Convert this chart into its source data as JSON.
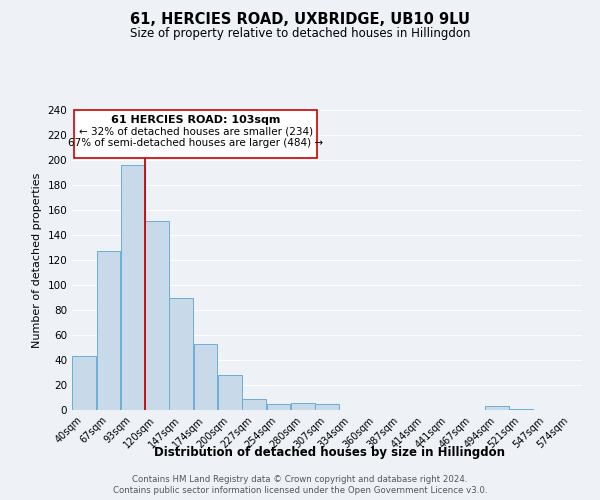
{
  "title": "61, HERCIES ROAD, UXBRIDGE, UB10 9LU",
  "subtitle": "Size of property relative to detached houses in Hillingdon",
  "xlabel": "Distribution of detached houses by size in Hillingdon",
  "ylabel": "Number of detached properties",
  "bin_labels": [
    "40sqm",
    "67sqm",
    "93sqm",
    "120sqm",
    "147sqm",
    "174sqm",
    "200sqm",
    "227sqm",
    "254sqm",
    "280sqm",
    "307sqm",
    "334sqm",
    "360sqm",
    "387sqm",
    "414sqm",
    "441sqm",
    "467sqm",
    "494sqm",
    "521sqm",
    "547sqm",
    "574sqm"
  ],
  "bar_heights": [
    43,
    127,
    196,
    151,
    90,
    53,
    28,
    9,
    5,
    6,
    5,
    0,
    0,
    0,
    0,
    0,
    0,
    3,
    1,
    0,
    0
  ],
  "bar_color": "#c8d9ea",
  "bar_edge_color": "#6aafd6",
  "ylim": [
    0,
    240
  ],
  "yticks": [
    0,
    20,
    40,
    60,
    80,
    100,
    120,
    140,
    160,
    180,
    200,
    220,
    240
  ],
  "property_line_x": 2.5,
  "property_line_color": "#cc0000",
  "annotation_title": "61 HERCIES ROAD: 103sqm",
  "annotation_line1": "← 32% of detached houses are smaller (234)",
  "annotation_line2": "67% of semi-detached houses are larger (484) →",
  "annotation_box_color": "#ffffff",
  "annotation_box_edge": "#cc0000",
  "footer_line1": "Contains HM Land Registry data © Crown copyright and database right 2024.",
  "footer_line2": "Contains public sector information licensed under the Open Government Licence v3.0.",
  "background_color": "#eef2f7",
  "plot_bg_color": "#eef2f7",
  "grid_color": "#ffffff"
}
